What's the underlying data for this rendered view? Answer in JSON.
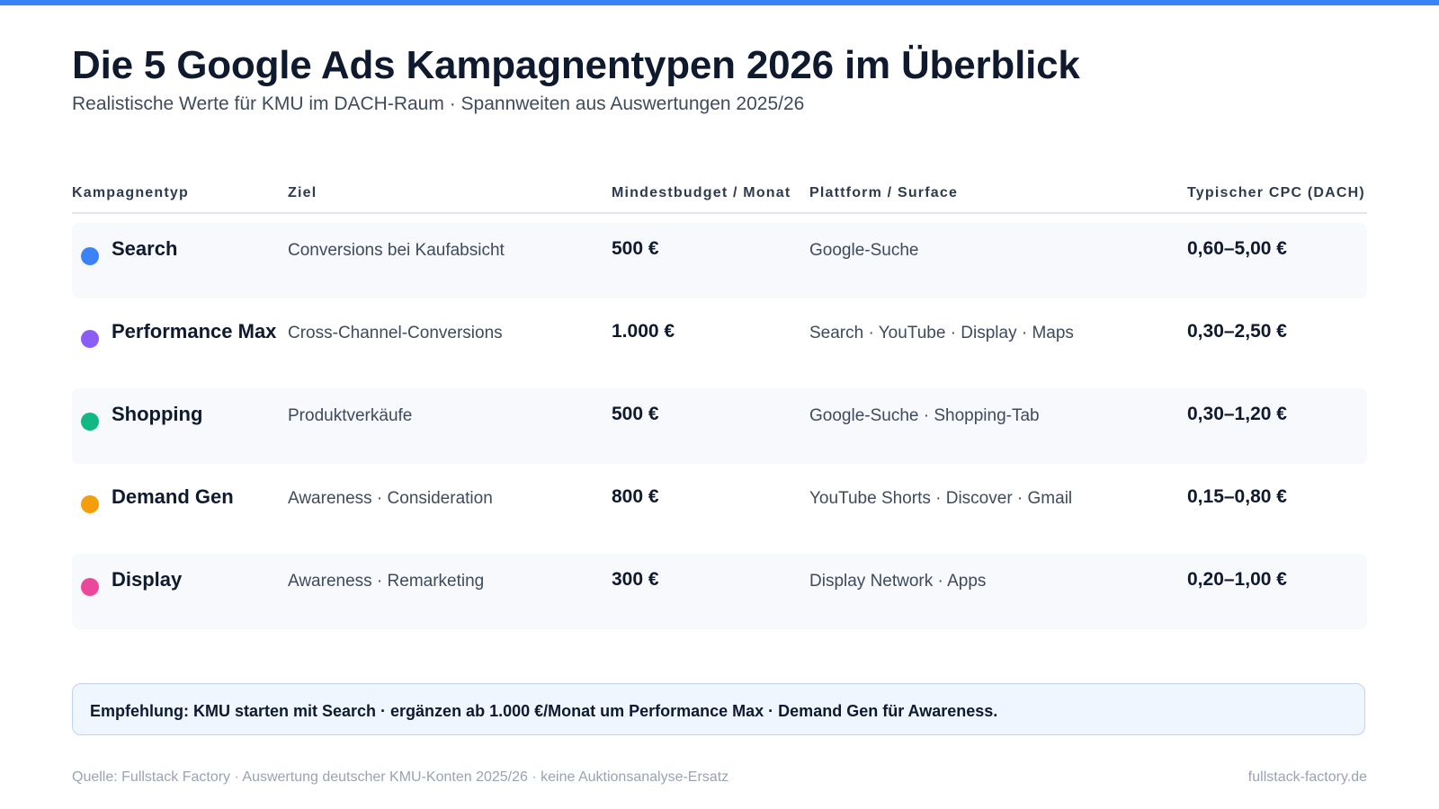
{
  "header": {
    "title": "Die 5 Google Ads Kampagnentypen 2026 im Überblick",
    "subtitle": "Realistische Werte für KMU im DACH-Raum · Spannweiten aus Auswertungen 2025/26"
  },
  "table": {
    "columns": [
      "Kampagnentyp",
      "Ziel",
      "Mindestbudget / Monat",
      "Plattform / Surface",
      "Typischer CPC (DACH)"
    ],
    "rows": [
      {
        "name": "Search",
        "color": "#3b82f6",
        "goal": "Conversions bei Kaufabsicht",
        "budget": "500 €",
        "platform": "Google-Suche",
        "cpc": "0,60–5,00 €"
      },
      {
        "name": "Performance Max",
        "color": "#8b5cf6",
        "goal": "Cross-Channel-Conversions",
        "budget": "1.000 €",
        "platform": "Search · YouTube · Display · Maps",
        "cpc": "0,30–2,50 €"
      },
      {
        "name": "Shopping",
        "color": "#10b981",
        "goal": "Produktverkäufe",
        "budget": "500 €",
        "platform": "Google-Suche · Shopping-Tab",
        "cpc": "0,30–1,20 €"
      },
      {
        "name": "Demand Gen",
        "color": "#f59e0b",
        "goal": "Awareness · Consideration",
        "budget": "800 €",
        "platform": "YouTube Shorts · Discover · Gmail",
        "cpc": "0,15–0,80 €"
      },
      {
        "name": "Display",
        "color": "#ec4899",
        "goal": "Awareness · Remarketing",
        "budget": "300 €",
        "platform": "Display Network · Apps",
        "cpc": "0,20–1,00 €"
      }
    ]
  },
  "callout": {
    "text": "Empfehlung: KMU starten mit Search · ergänzen ab 1.000 €/Monat um Performance Max · Demand Gen für Awareness."
  },
  "footer": {
    "source": "Quelle: Fullstack Factory · Auswertung deutscher KMU-Konten 2025/26 · keine Auktionsanalyse-Ersatz",
    "site": "fullstack-factory.de"
  },
  "colors": {
    "accent": "#3b82f6"
  }
}
